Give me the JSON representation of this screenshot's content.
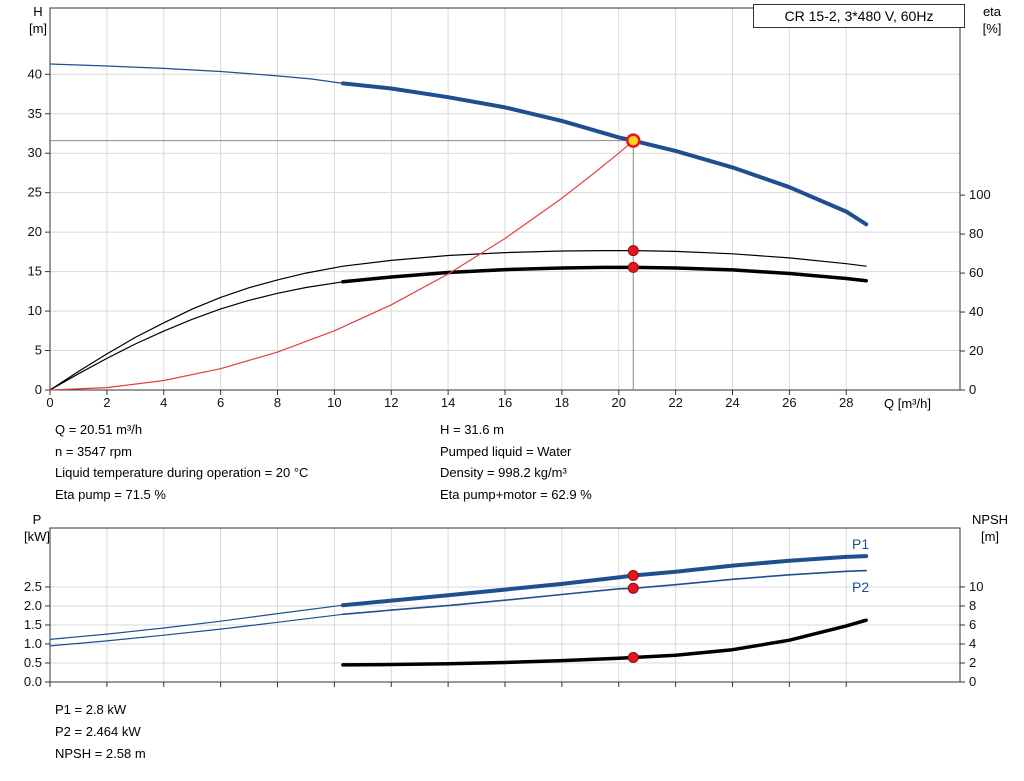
{
  "title_box": {
    "text": "CR 15-2, 3*480 V, 60Hz"
  },
  "info_panel": {
    "left": [
      "Q = 20.51 m³/h",
      "n = 3547 rpm",
      "Liquid temperature during operation = 20 °C",
      "Eta pump = 71.5 %"
    ],
    "right": [
      "H = 31.6 m",
      "Pumped liquid = Water",
      "Density = 998.2 kg/m³",
      "Eta pump+motor = 62.9 %"
    ]
  },
  "result_panel": [
    "P1 = 2.8 kW",
    "P2 = 2.464 kW",
    "NPSH = 2.58 m"
  ],
  "chart_data": [
    {
      "type": "line",
      "title": "CR 15-2, 3*480 V, 60Hz",
      "marker_color": "#e8141e",
      "axes": {
        "x": {
          "label": "Q [m³/h]",
          "lim": [
            0,
            32
          ],
          "ticks": [
            [
              0,
              "0"
            ],
            [
              2,
              "2"
            ],
            [
              4,
              "4"
            ],
            [
              6,
              "6"
            ],
            [
              8,
              "8"
            ],
            [
              10,
              "10"
            ],
            [
              12,
              "12"
            ],
            [
              14,
              "14"
            ],
            [
              16,
              "16"
            ],
            [
              18,
              "18"
            ],
            [
              20,
              "20"
            ],
            [
              22,
              "22"
            ],
            [
              24,
              "24"
            ],
            [
              26,
              "26"
            ],
            [
              28,
              "28"
            ]
          ]
        },
        "left": {
          "label": [
            "H",
            "[m]"
          ],
          "lim": [
            0,
            48.4
          ],
          "ticks": [
            [
              0,
              "0"
            ],
            [
              5,
              "5"
            ],
            [
              10,
              "10"
            ],
            [
              15,
              "15"
            ],
            [
              20,
              "20"
            ],
            [
              25,
              "25"
            ],
            [
              30,
              "30"
            ],
            [
              35,
              "35"
            ],
            [
              40,
              "40"
            ]
          ]
        },
        "right": {
          "label": [
            "eta",
            "[%]"
          ],
          "lim": [
            0,
            196
          ],
          "ticks": [
            [
              0,
              "0"
            ],
            [
              20,
              "20"
            ],
            [
              40,
              "40"
            ],
            [
              60,
              "60"
            ],
            [
              80,
              "80"
            ],
            [
              100,
              "100"
            ]
          ]
        }
      },
      "series": [
        {
          "id": "qh-extension",
          "name": "QH curve (below min flow)",
          "axis": "left",
          "color": "#1d4f91",
          "width": 1.2,
          "points": [
            [
              0,
              41.3
            ],
            [
              2,
              41.05
            ],
            [
              4,
              40.75
            ],
            [
              6,
              40.35
            ],
            [
              8,
              39.8
            ],
            [
              9.2,
              39.4
            ],
            [
              10.3,
              38.85
            ]
          ]
        },
        {
          "id": "qh",
          "name": "QH pump curve",
          "axis": "left",
          "color": "#1d4f91",
          "width": 4,
          "points": [
            [
              10.3,
              38.85
            ],
            [
              12,
              38.2
            ],
            [
              14,
              37.1
            ],
            [
              16,
              35.8
            ],
            [
              18,
              34.1
            ],
            [
              20,
              32.0
            ],
            [
              20.51,
              31.6
            ],
            [
              22,
              30.3
            ],
            [
              24,
              28.2
            ],
            [
              26,
              25.7
            ],
            [
              28,
              22.6
            ],
            [
              28.7,
              21.0
            ]
          ]
        },
        {
          "id": "eta-pump",
          "name": "Eta pump",
          "axis": "right",
          "color": "#000000",
          "width": 1.2,
          "points": [
            [
              0,
              0
            ],
            [
              1,
              9.5
            ],
            [
              2,
              18.5
            ],
            [
              3,
              27
            ],
            [
              4,
              34.5
            ],
            [
              5,
              41.5
            ],
            [
              6,
              47.5
            ],
            [
              7,
              52.5
            ],
            [
              8,
              56.5
            ],
            [
              9,
              60
            ],
            [
              10.3,
              63.5
            ],
            [
              12,
              66.5
            ],
            [
              14,
              69
            ],
            [
              16,
              70.5
            ],
            [
              18,
              71.3
            ],
            [
              19.5,
              71.5
            ],
            [
              20.51,
              71.5
            ],
            [
              22,
              71.1
            ],
            [
              24,
              69.9
            ],
            [
              26,
              67.8
            ],
            [
              28,
              64.8
            ],
            [
              28.7,
              63.5
            ]
          ]
        },
        {
          "id": "eta-pump-motor-extension",
          "name": "Eta pump+motor (below min flow)",
          "axis": "right",
          "color": "#000000",
          "width": 1.2,
          "points": [
            [
              0,
              0
            ],
            [
              1,
              8.3
            ],
            [
              2,
              16.2
            ],
            [
              3,
              23.6
            ],
            [
              4,
              30.2
            ],
            [
              5,
              36.3
            ],
            [
              6,
              41.6
            ],
            [
              7,
              46
            ],
            [
              8,
              49.6
            ],
            [
              9,
              52.6
            ],
            [
              10.3,
              55.5
            ]
          ]
        },
        {
          "id": "eta-pump-motor",
          "name": "Eta pump+motor",
          "axis": "right",
          "color": "#000000",
          "width": 3.5,
          "points": [
            [
              10.3,
              55.5
            ],
            [
              12,
              58
            ],
            [
              14,
              60.3
            ],
            [
              16,
              61.8
            ],
            [
              18,
              62.6
            ],
            [
              19.5,
              62.9
            ],
            [
              20.51,
              62.9
            ],
            [
              22,
              62.6
            ],
            [
              24,
              61.6
            ],
            [
              26,
              59.8
            ],
            [
              28,
              57.2
            ],
            [
              28.7,
              56.1
            ]
          ]
        },
        {
          "id": "system-curve",
          "name": "System curve to duty point",
          "axis": "left",
          "color": "#e04040",
          "width": 1.2,
          "points": [
            [
              0,
              0
            ],
            [
              2,
              0.3
            ],
            [
              4,
              1.2
            ],
            [
              6,
              2.7
            ],
            [
              8,
              4.8
            ],
            [
              10,
              7.5
            ],
            [
              12,
              10.8
            ],
            [
              14,
              14.7
            ],
            [
              16,
              19.2
            ],
            [
              18,
              24.3
            ],
            [
              19,
              27.1
            ],
            [
              20,
              30.0
            ],
            [
              20.51,
              31.6
            ]
          ]
        }
      ],
      "duty_point": {
        "q": 20.51,
        "h": 31.6,
        "fill": "#ffd520",
        "ring": "#e8141e"
      },
      "dots": [
        {
          "axis": "right",
          "q": 20.51,
          "v": 71.5
        },
        {
          "axis": "right",
          "q": 20.51,
          "v": 62.9
        }
      ]
    },
    {
      "type": "line",
      "title": "",
      "marker_color": "#e8141e",
      "axes": {
        "x": {
          "label": "",
          "lim": [
            0,
            32
          ],
          "ticks": [
            [
              0,
              ""
            ],
            [
              2,
              ""
            ],
            [
              4,
              ""
            ],
            [
              6,
              ""
            ],
            [
              8,
              ""
            ],
            [
              10,
              ""
            ],
            [
              12,
              ""
            ],
            [
              14,
              ""
            ],
            [
              16,
              ""
            ],
            [
              18,
              ""
            ],
            [
              20,
              ""
            ],
            [
              22,
              ""
            ],
            [
              24,
              ""
            ],
            [
              26,
              ""
            ],
            [
              28,
              ""
            ]
          ]
        },
        "left": {
          "label": [
            "P",
            "[kW]"
          ],
          "lim": [
            0,
            4.05
          ],
          "ticks": [
            [
              0,
              "0.0"
            ],
            [
              0.5,
              "0.5"
            ],
            [
              1,
              "1.0"
            ],
            [
              1.5,
              "1.5"
            ],
            [
              2,
              "2.0"
            ],
            [
              2.5,
              "2.5"
            ]
          ]
        },
        "right": {
          "label": [
            "NPSH",
            "[m]"
          ],
          "lim": [
            0,
            16.2
          ],
          "ticks": [
            [
              0,
              "0"
            ],
            [
              2,
              "2"
            ],
            [
              4,
              "4"
            ],
            [
              6,
              "6"
            ],
            [
              8,
              "8"
            ],
            [
              10,
              "10"
            ]
          ]
        }
      },
      "series": [
        {
          "id": "p1-extension",
          "name": "P1 (below min flow)",
          "axis": "left",
          "color": "#1d4f91",
          "width": 1.2,
          "points": [
            [
              0,
              1.12
            ],
            [
              2,
              1.26
            ],
            [
              4,
              1.42
            ],
            [
              6,
              1.6
            ],
            [
              8,
              1.8
            ],
            [
              10.3,
              2.02
            ]
          ]
        },
        {
          "id": "p1",
          "name": "P1 power input",
          "axis": "left",
          "color": "#1d4f91",
          "width": 4,
          "points": [
            [
              10.3,
              2.02
            ],
            [
              12,
              2.14
            ],
            [
              14,
              2.28
            ],
            [
              16,
              2.43
            ],
            [
              18,
              2.58
            ],
            [
              20,
              2.75
            ],
            [
              20.51,
              2.8
            ],
            [
              22,
              2.9
            ],
            [
              24,
              3.06
            ],
            [
              26,
              3.19
            ],
            [
              28,
              3.29
            ],
            [
              28.7,
              3.31
            ]
          ]
        },
        {
          "id": "p2-extension",
          "name": "P2 (below min flow)",
          "axis": "left",
          "color": "#1d4f91",
          "width": 1.2,
          "points": [
            [
              0,
              0.95
            ],
            [
              2,
              1.08
            ],
            [
              4,
              1.23
            ],
            [
              6,
              1.39
            ],
            [
              8,
              1.57
            ],
            [
              10.3,
              1.78
            ]
          ]
        },
        {
          "id": "p2",
          "name": "P2 shaft power",
          "axis": "left",
          "color": "#1d4f91",
          "width": 1.6,
          "points": [
            [
              10.3,
              1.78
            ],
            [
              12,
              1.89
            ],
            [
              14,
              2.01
            ],
            [
              16,
              2.15
            ],
            [
              18,
              2.3
            ],
            [
              20,
              2.45
            ],
            [
              20.51,
              2.464
            ],
            [
              22,
              2.56
            ],
            [
              24,
              2.7
            ],
            [
              26,
              2.82
            ],
            [
              28,
              2.91
            ],
            [
              28.7,
              2.93
            ]
          ]
        },
        {
          "id": "npsh",
          "name": "NPSH curve",
          "axis": "right",
          "color": "#000000",
          "width": 3.5,
          "points": [
            [
              10.3,
              1.8
            ],
            [
              12,
              1.84
            ],
            [
              14,
              1.92
            ],
            [
              16,
              2.05
            ],
            [
              18,
              2.25
            ],
            [
              20,
              2.5
            ],
            [
              20.51,
              2.58
            ],
            [
              22,
              2.82
            ],
            [
              24,
              3.4
            ],
            [
              26,
              4.4
            ],
            [
              28,
              5.9
            ],
            [
              28.7,
              6.5
            ]
          ]
        }
      ],
      "dots": [
        {
          "axis": "left",
          "q": 20.51,
          "v": 2.8
        },
        {
          "axis": "left",
          "q": 20.51,
          "v": 2.464
        },
        {
          "axis": "right",
          "q": 20.51,
          "v": 2.58
        }
      ],
      "series_labels": [
        {
          "text": "P1"
        },
        {
          "text": "P2"
        }
      ]
    }
  ]
}
